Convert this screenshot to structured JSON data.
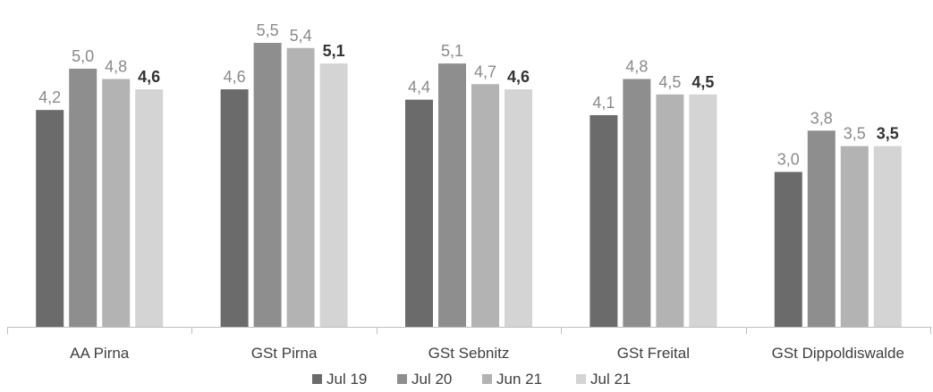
{
  "chart_data": {
    "type": "bar",
    "categories": [
      "AA Pirna",
      "GSt Pirna",
      "GSt Sebnitz",
      "GSt Freital",
      "GSt Dippoldiswalde"
    ],
    "series": [
      {
        "name": "Jul 19",
        "color": "#6b6b6b",
        "values": [
          4.2,
          4.6,
          4.4,
          4.1,
          3.0
        ],
        "labels": [
          "4,2",
          "4,6",
          "4,4",
          "4,1",
          "3,0"
        ]
      },
      {
        "name": "Jul 20",
        "color": "#8e8e8e",
        "values": [
          5.0,
          5.5,
          5.1,
          4.8,
          3.8
        ],
        "labels": [
          "5,0",
          "5,5",
          "5,1",
          "4,8",
          "3,8"
        ]
      },
      {
        "name": "Jun 21",
        "color": "#b3b3b3",
        "values": [
          4.8,
          5.4,
          4.7,
          4.5,
          3.5
        ],
        "labels": [
          "4,8",
          "5,4",
          "4,7",
          "4,5",
          "3,5"
        ]
      },
      {
        "name": "Jul 21",
        "color": "#d4d4d4",
        "values": [
          4.6,
          5.1,
          4.6,
          4.5,
          3.5
        ],
        "labels": [
          "4,6",
          "5,1",
          "4,6",
          "4,5",
          "3,5"
        ],
        "bold_labels": true
      }
    ],
    "ylim": [
      0,
      6
    ],
    "grid": false,
    "legend": "bottom",
    "label_color": "#8a8a8a",
    "bold_label_color": "#333333",
    "axis_color": "#bfbfbf"
  }
}
